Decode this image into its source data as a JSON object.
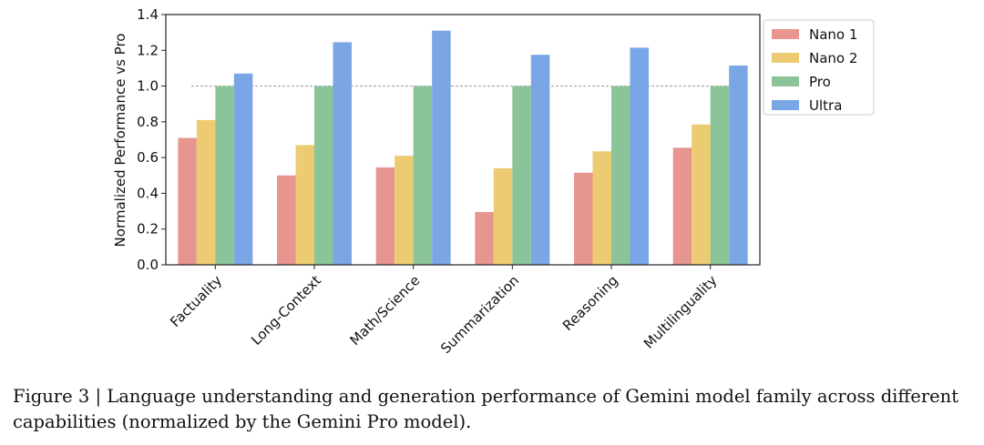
{
  "chart_data": {
    "type": "bar",
    "categories": [
      "Factuality",
      "Long-Context",
      "Math/Science",
      "Summarization",
      "Reasoning",
      "Multilinguality"
    ],
    "series": [
      {
        "name": "Nano 1",
        "color": "#e6958f",
        "values": [
          0.71,
          0.5,
          0.545,
          0.295,
          0.515,
          0.655
        ]
      },
      {
        "name": "Nano 2",
        "color": "#eccb73",
        "values": [
          0.81,
          0.67,
          0.61,
          0.54,
          0.635,
          0.785
        ]
      },
      {
        "name": "Pro",
        "color": "#8cc49a",
        "values": [
          1.0,
          1.0,
          1.0,
          1.0,
          1.0,
          1.0
        ]
      },
      {
        "name": "Ultra",
        "color": "#7aa6e6",
        "values": [
          1.07,
          1.245,
          1.31,
          1.175,
          1.215,
          1.115
        ]
      }
    ],
    "ylabel": "Normalized Performance vs Pro",
    "xlabel": "",
    "ylim": [
      0,
      1.4
    ],
    "yticks": [
      "0.0",
      "0.2",
      "0.4",
      "0.6",
      "0.8",
      "1.0",
      "1.2",
      "1.4"
    ],
    "reference_line": 1.0,
    "grid": false,
    "legend": "outside-top-right"
  },
  "caption": "Figure 3 | Language understanding and generation performance of Gemini model family across different capabilities (normalized by the Gemini Pro model)."
}
